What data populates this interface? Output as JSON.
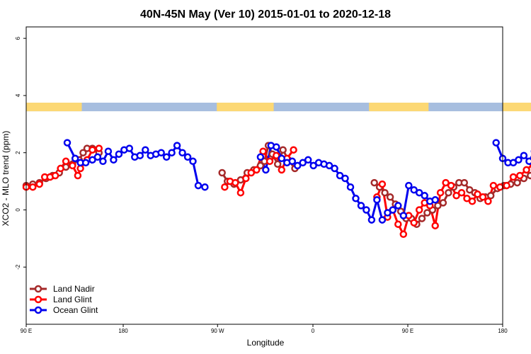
{
  "chart_data": {
    "type": "line",
    "title": "40N-45N May (Ver 10)   2015-01-01 to 2020-12-18",
    "xlabel": "Longitude",
    "ylabel": "XCO2 - MLO trend (ppm)",
    "xlim": [
      90,
      450
    ],
    "ylim": [
      -4,
      6.4
    ],
    "y_ticks": [
      6,
      4,
      2,
      0,
      -2
    ],
    "y_tick_labels": [
      "6",
      "4",
      "2",
      "0",
      "-2"
    ],
    "x_ticks": [
      90,
      180,
      270,
      360,
      450,
      540
    ],
    "x_tick_labels": [
      "90 E",
      "180",
      "90 W",
      "0",
      "90 E",
      "180"
    ],
    "x_axis_note": "longitude unwrapped to 90E..540 (wraps once around the globe)",
    "land_sea_strip": {
      "y_range": [
        3.45,
        3.75
      ],
      "land_color": "#fcd874",
      "ocean_color": "#a7bedf",
      "land_spans": [
        [
          90,
          132
        ],
        [
          234,
          277
        ],
        [
          349,
          394
        ],
        [
          450,
          493
        ]
      ]
    },
    "legend_position": "bottom-left",
    "series": [
      {
        "name": "Land Nadir",
        "color": "#a52a2a",
        "segments": [
          [
            [
              90,
              0.85
            ],
            [
              95,
              0.9
            ],
            [
              100,
              0.95
            ],
            [
              105,
              1.1
            ],
            [
              110,
              1.2
            ],
            [
              115,
              1.3
            ],
            [
              120,
              1.5
            ],
            [
              125,
              1.6
            ],
            [
              130,
              1.75
            ],
            [
              133,
              2.0
            ],
            [
              136,
              2.15
            ],
            [
              140,
              2.15
            ],
            [
              145,
              2.0
            ]
          ],
          [
            [
              238,
              1.3
            ],
            [
              242,
              1.0
            ],
            [
              247,
              0.9
            ],
            [
              252,
              1.05
            ],
            [
              257,
              1.3
            ],
            [
              262,
              1.4
            ],
            [
              267,
              1.55
            ],
            [
              270,
              1.7
            ],
            [
              273,
              2.25
            ],
            [
              276,
              1.95
            ],
            [
              280,
              1.6
            ],
            [
              284,
              2.1
            ],
            [
              288,
              1.75
            ],
            [
              293,
              1.45
            ]
          ],
          [
            [
              353,
              0.95
            ],
            [
              357,
              0.8
            ],
            [
              361,
              0.6
            ],
            [
              365,
              0.45
            ],
            [
              369,
              0.2
            ],
            [
              373,
              -0.05
            ],
            [
              377,
              -0.3
            ],
            [
              381,
              -0.3
            ],
            [
              385,
              -0.5
            ],
            [
              389,
              -0.3
            ],
            [
              393,
              -0.1
            ],
            [
              397,
              0.0
            ],
            [
              401,
              0.15
            ],
            [
              405,
              0.25
            ],
            [
              409,
              0.6
            ],
            [
              413,
              0.8
            ],
            [
              417,
              0.95
            ],
            [
              421,
              0.95
            ],
            [
              425,
              0.7
            ],
            [
              429,
              0.6
            ],
            [
              433,
              0.4
            ],
            [
              437,
              0.45
            ],
            [
              441,
              0.5
            ],
            [
              446,
              0.75
            ],
            [
              451,
              0.85
            ],
            [
              456,
              0.9
            ],
            [
              461,
              0.95
            ],
            [
              466,
              1.1
            ],
            [
              471,
              1.2
            ],
            [
              476,
              1.4
            ],
            [
              481,
              1.6
            ],
            [
              485,
              1.8
            ],
            [
              488,
              2.15
            ],
            [
              492,
              2.15
            ],
            [
              496,
              2.0
            ]
          ]
        ]
      },
      {
        "name": "Land Glint",
        "color": "#ff0000",
        "segments": [
          [
            [
              90,
              0.8
            ],
            [
              95,
              0.8
            ],
            [
              100,
              0.9
            ],
            [
              104,
              1.15
            ],
            [
              108,
              1.15
            ],
            [
              112,
              1.2
            ],
            [
              116,
              1.45
            ],
            [
              120,
              1.7
            ],
            [
              125,
              1.55
            ],
            [
              129,
              1.2
            ],
            [
              131,
              1.45
            ],
            [
              136,
              1.75
            ],
            [
              140,
              2.1
            ],
            [
              145,
              2.15
            ]
          ],
          [
            [
              240,
              0.8
            ],
            [
              244,
              1.0
            ],
            [
              248,
              0.95
            ],
            [
              252,
              0.6
            ],
            [
              256,
              1.1
            ],
            [
              260,
              1.3
            ],
            [
              264,
              1.4
            ],
            [
              269,
              2.05
            ],
            [
              274,
              1.7
            ],
            [
              279,
              1.9
            ],
            [
              283,
              1.4
            ],
            [
              287,
              1.8
            ],
            [
              292,
              2.1
            ]
          ],
          [
            [
              355,
              0.45
            ],
            [
              359,
              0.9
            ],
            [
              363,
              -0.25
            ],
            [
              367,
              0.0
            ],
            [
              371,
              -0.5
            ],
            [
              375,
              -0.85
            ],
            [
              379,
              -0.2
            ],
            [
              383,
              -0.45
            ],
            [
              387,
              0.0
            ],
            [
              391,
              0.25
            ],
            [
              395,
              0.15
            ],
            [
              399,
              -0.55
            ],
            [
              403,
              0.6
            ],
            [
              407,
              0.95
            ],
            [
              411,
              0.85
            ],
            [
              415,
              0.5
            ],
            [
              419,
              0.6
            ],
            [
              423,
              0.4
            ],
            [
              427,
              0.3
            ],
            [
              431,
              0.55
            ],
            [
              435,
              0.45
            ],
            [
              439,
              0.3
            ],
            [
              443,
              0.85
            ],
            [
              448,
              0.8
            ],
            [
              453,
              0.85
            ],
            [
              458,
              1.15
            ],
            [
              463,
              1.2
            ],
            [
              468,
              1.4
            ],
            [
              473,
              1.6
            ],
            [
              478,
              1.55
            ],
            [
              483,
              1.15
            ],
            [
              486,
              1.5
            ],
            [
              491,
              2.15
            ],
            [
              495,
              2.15
            ]
          ]
        ]
      },
      {
        "name": "Ocean Glint",
        "color": "#0000ee",
        "segments": [
          [
            [
              121,
              2.35
            ],
            [
              127,
              1.8
            ],
            [
              131,
              1.65
            ],
            [
              135,
              1.65
            ],
            [
              140,
              1.75
            ],
            [
              144,
              1.85
            ],
            [
              148,
              1.7
            ],
            [
              152,
              2.05
            ],
            [
              156,
              1.75
            ],
            [
              160,
              1.95
            ],
            [
              164,
              2.1
            ],
            [
              168,
              2.15
            ],
            [
              172,
              1.85
            ],
            [
              176,
              1.9
            ],
            [
              180,
              2.1
            ],
            [
              184,
              1.9
            ],
            [
              188,
              1.95
            ],
            [
              192,
              2.0
            ],
            [
              196,
              1.85
            ],
            [
              200,
              2.0
            ],
            [
              204,
              2.25
            ],
            [
              208,
              2.0
            ],
            [
              212,
              1.85
            ],
            [
              216,
              1.7
            ],
            [
              220,
              0.85
            ],
            [
              225,
              0.8
            ]
          ],
          [
            [
              267,
              1.85
            ],
            [
              271,
              1.4
            ],
            [
              275,
              2.25
            ],
            [
              279,
              2.2
            ],
            [
              283,
              1.8
            ],
            [
              287,
              1.65
            ],
            [
              291,
              1.7
            ],
            [
              295,
              1.55
            ],
            [
              299,
              1.65
            ],
            [
              303,
              1.75
            ],
            [
              307,
              1.55
            ],
            [
              311,
              1.65
            ],
            [
              315,
              1.6
            ],
            [
              319,
              1.55
            ],
            [
              323,
              1.45
            ],
            [
              327,
              1.2
            ],
            [
              331,
              1.1
            ],
            [
              335,
              0.8
            ],
            [
              339,
              0.4
            ],
            [
              343,
              0.15
            ],
            [
              347,
              0.0
            ],
            [
              351,
              -0.35
            ],
            [
              355,
              0.35
            ],
            [
              359,
              -0.35
            ],
            [
              363,
              -0.1
            ],
            [
              367,
              0.0
            ],
            [
              371,
              0.15
            ],
            [
              375,
              -0.2
            ],
            [
              379,
              0.85
            ],
            [
              383,
              0.7
            ],
            [
              387,
              0.6
            ],
            [
              391,
              0.5
            ],
            [
              395,
              0.3
            ],
            [
              399,
              0.35
            ]
          ],
          [
            [
              445,
              2.35
            ],
            [
              450,
              1.8
            ],
            [
              454,
              1.65
            ],
            [
              458,
              1.65
            ],
            [
              462,
              1.75
            ],
            [
              466,
              1.9
            ],
            [
              470,
              1.7
            ],
            [
              474,
              2.05
            ],
            [
              478,
              1.75
            ],
            [
              482,
              1.95
            ],
            [
              486,
              2.1
            ],
            [
              490,
              2.15
            ],
            [
              495,
              1.85
            ]
          ]
        ]
      }
    ]
  }
}
